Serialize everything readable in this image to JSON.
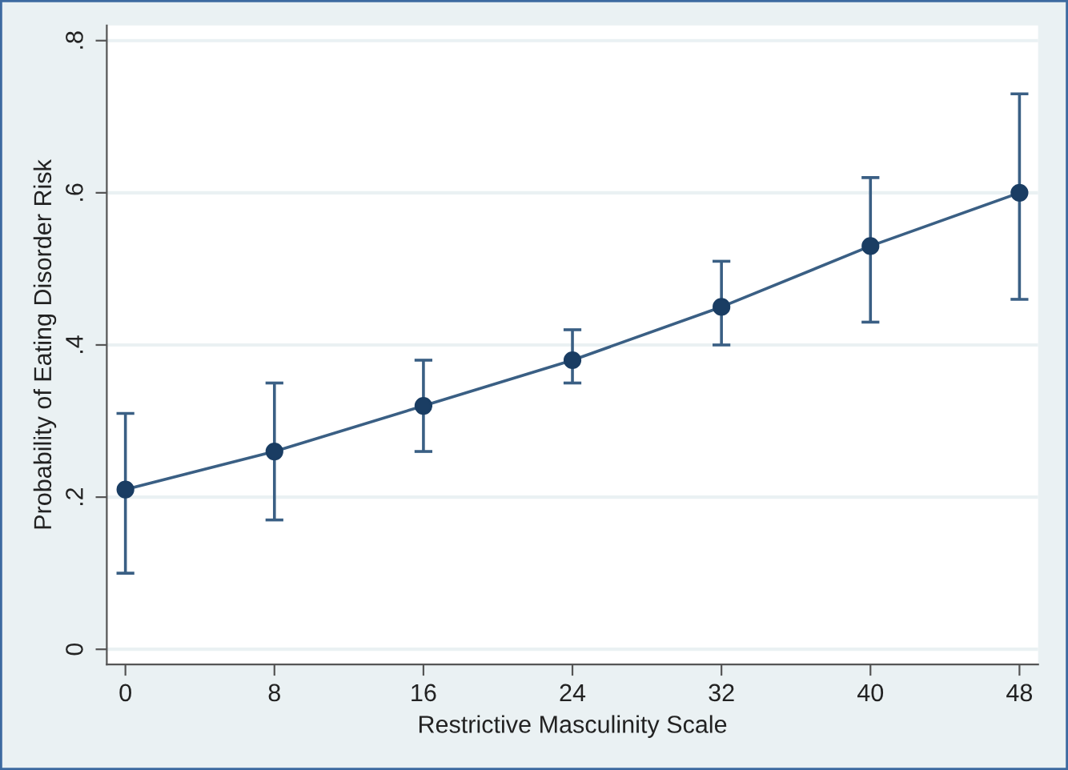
{
  "chart_data": {
    "type": "line",
    "xlabel": "Restrictive Masculinity Scale",
    "ylabel": "Probability of Eating Disorder Risk",
    "x": [
      0,
      8,
      16,
      24,
      32,
      40,
      48
    ],
    "series": [
      {
        "color": "#1a3d63",
        "values": [
          0.21,
          0.26,
          0.32,
          0.38,
          0.45,
          0.53,
          0.6
        ],
        "errors": [
          [
            0.1,
            0.31
          ],
          [
            0.17,
            0.35
          ],
          [
            0.26,
            0.38
          ],
          [
            0.35,
            0.42
          ],
          [
            0.4,
            0.51
          ],
          [
            0.43,
            0.62
          ],
          [
            0.46,
            0.73
          ]
        ]
      }
    ],
    "xlim": [
      -1,
      49
    ],
    "ylim": [
      -0.02,
      0.82
    ],
    "xticks": [
      0,
      8,
      16,
      24,
      32,
      40,
      48
    ],
    "yticks": [
      0,
      {
        "value": 0.2,
        "label": ".2"
      },
      {
        "value": 0.4,
        "label": ".4"
      },
      {
        "value": 0.6,
        "label": ".6"
      },
      {
        "value": 0.8,
        "label": ".8"
      }
    ],
    "grid": "y",
    "marker": "circle",
    "line_style": "solid"
  }
}
